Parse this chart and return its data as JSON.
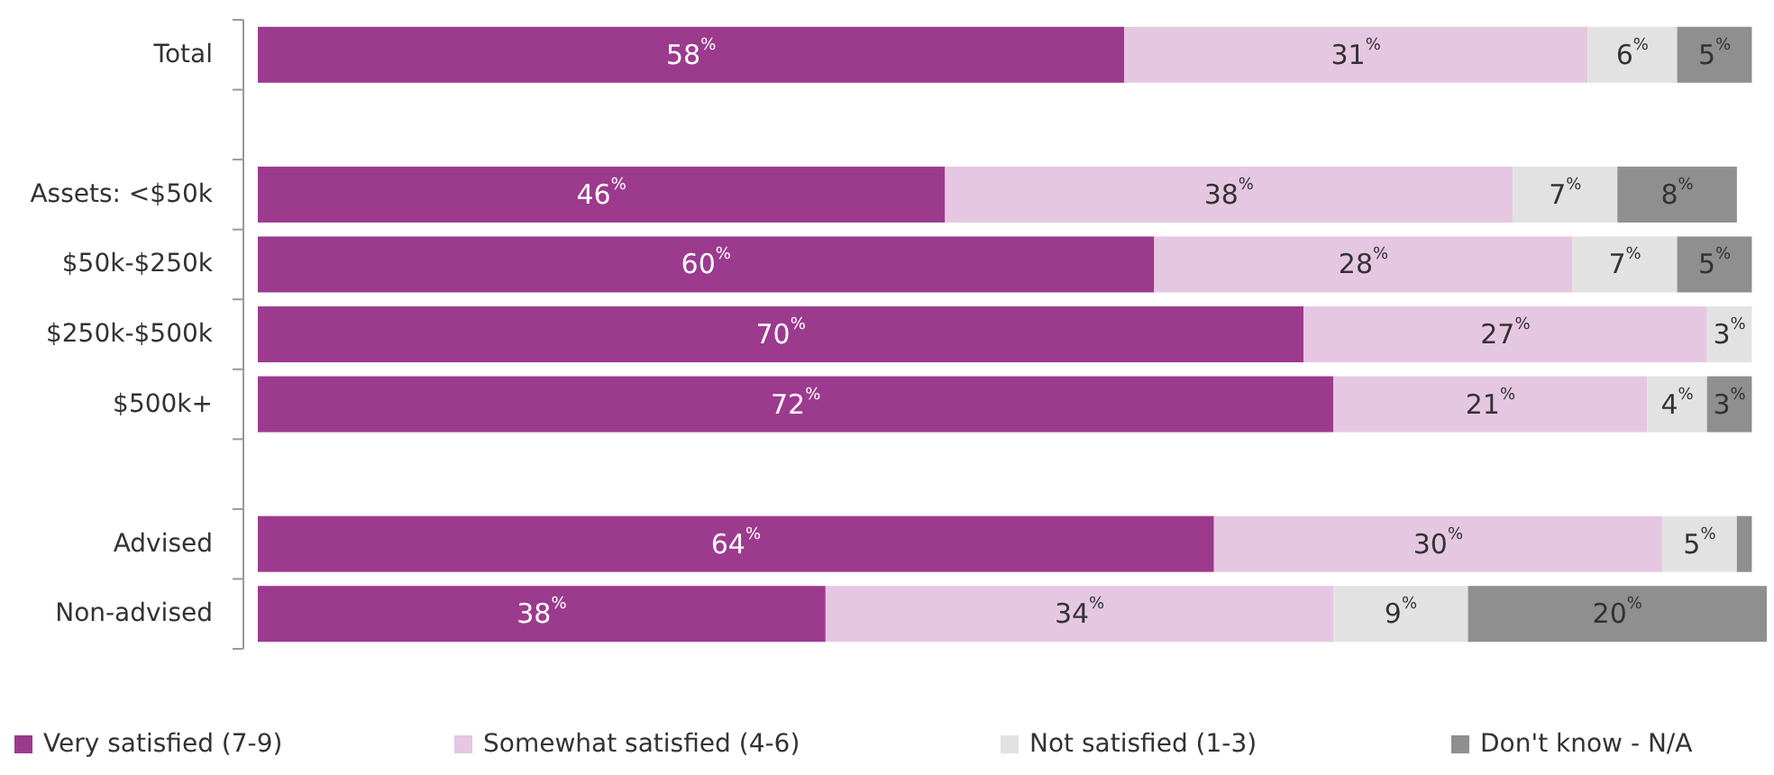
{
  "chart_data": {
    "type": "bar",
    "orientation": "horizontal",
    "stacked": true,
    "legend": "bottom",
    "categories": [
      "Total",
      null,
      "Assets: <$50k",
      "$50k-$250k",
      "$250k-$500k",
      "$500k+",
      null,
      "Advised",
      "Non-advised"
    ],
    "series": [
      {
        "name": "Very satisfied (7-9)",
        "color": "#9c3a8e",
        "values": [
          58,
          null,
          46,
          60,
          70,
          72,
          null,
          64,
          38
        ],
        "value_labels": [
          "58$^{%}$",
          null,
          "46$^{%}$",
          "60$^{%}$",
          "70$^{%}$",
          "72$^{%}$",
          null,
          "64$^{%}$",
          "38$^{%}$"
        ]
      },
      {
        "name": "Somewhat satisfied (4-6)",
        "color": "#e6c7e1",
        "values": [
          31,
          null,
          38,
          28,
          27,
          21,
          null,
          30,
          34
        ],
        "value_labels": [
          "31$^{%}$",
          null,
          "38$^{%}$",
          "28$^{%}$",
          "27$^{%}$",
          "21$^{%}$",
          null,
          "30$^{%}$",
          "34$^{%}$"
        ]
      },
      {
        "name": "Not satisfied (1-3)",
        "color": "#e2e2e2",
        "values": [
          6,
          null,
          7,
          7,
          3,
          4,
          null,
          5,
          9
        ],
        "value_labels": [
          "6$^{%}$",
          null,
          "7$^{%}$",
          "7$^{%}$",
          "3$^{%}$",
          "4$^{%}$",
          null,
          "5$^{%}$",
          "9$^{%}$"
        ]
      },
      {
        "name": "Don't know - N/A",
        "color": "#8f8f8f",
        "values": [
          5,
          null,
          8,
          5,
          0,
          3,
          null,
          1,
          20
        ],
        "value_labels": [
          "5$^{%}$",
          null,
          "8$^{%}$",
          "5$^{%}$",
          null,
          "3$^{%}$",
          null,
          null,
          "20$^{%}$"
        ]
      }
    ]
  }
}
